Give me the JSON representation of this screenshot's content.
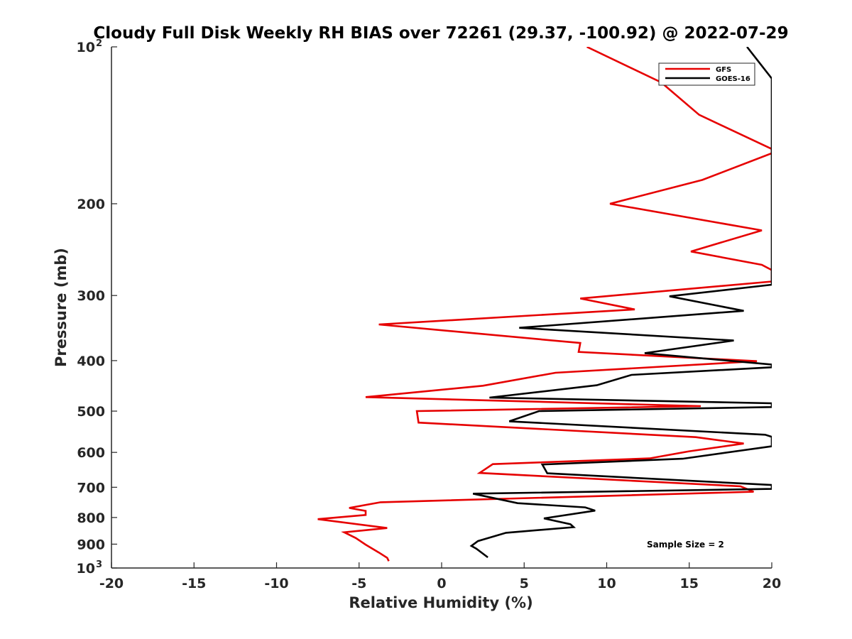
{
  "chart_data": {
    "type": "line",
    "title": "Cloudy Full Disk Weekly RH BIAS over 72261 (29.37, -100.92) @ 2022-07-29",
    "xlabel": "Relative Humidity (%)",
    "ylabel": "Pressure (mb)",
    "xlim": [
      -20,
      20
    ],
    "ylim": [
      100,
      1000
    ],
    "y_scale": "log",
    "y_reversed": true,
    "grid": false,
    "legend": "top-right",
    "x_ticks": [
      -20,
      -15,
      -10,
      -5,
      0,
      5,
      10,
      15,
      20
    ],
    "x_tick_labels": [
      "-20",
      "-15",
      "-10",
      "-5",
      "0",
      "5",
      "10",
      "15",
      "20"
    ],
    "y_ticks": [
      {
        "value": 100,
        "label": "10",
        "sup": "2"
      },
      {
        "value": 200,
        "label": "200",
        "sup": ""
      },
      {
        "value": 300,
        "label": "300",
        "sup": ""
      },
      {
        "value": 400,
        "label": "400",
        "sup": ""
      },
      {
        "value": 500,
        "label": "500",
        "sup": ""
      },
      {
        "value": 600,
        "label": "600",
        "sup": ""
      },
      {
        "value": 700,
        "label": "700",
        "sup": ""
      },
      {
        "value": 800,
        "label": "800",
        "sup": ""
      },
      {
        "value": 900,
        "label": "900",
        "sup": ""
      },
      {
        "value": 1000,
        "label": "10",
        "sup": "3"
      }
    ],
    "annotation": "Sample Size = 2",
    "series": [
      {
        "name": "GFS",
        "color": "#e60000",
        "points": [
          [
            8.8,
            100
          ],
          [
            13.3,
            117
          ],
          [
            15.6,
            135
          ],
          [
            20.0,
            157
          ],
          [
            20.0,
            160
          ],
          [
            15.8,
            180
          ],
          [
            10.2,
            200
          ],
          [
            19.4,
            225
          ],
          [
            15.1,
            247
          ],
          [
            19.4,
            262
          ],
          [
            20.0,
            268
          ],
          [
            20.0,
            282
          ],
          [
            8.4,
            304
          ],
          [
            11.7,
            319
          ],
          [
            -3.8,
            341
          ],
          [
            8.4,
            370
          ],
          [
            8.3,
            385
          ],
          [
            19.1,
            401
          ],
          [
            6.9,
            422
          ],
          [
            2.5,
            447
          ],
          [
            -4.6,
            470
          ],
          [
            15.7,
            489
          ],
          [
            -1.5,
            500
          ],
          [
            -1.4,
            526
          ],
          [
            15.4,
            561
          ],
          [
            18.3,
            577
          ],
          [
            15.0,
            597
          ],
          [
            12.6,
            616
          ],
          [
            3.1,
            632
          ],
          [
            2.3,
            657
          ],
          [
            18.1,
            697
          ],
          [
            18.9,
            714
          ],
          [
            -3.7,
            748
          ],
          [
            -5.6,
            767
          ],
          [
            -4.6,
            777
          ],
          [
            -4.6,
            791
          ],
          [
            -7.5,
            806
          ],
          [
            -3.3,
            838
          ],
          [
            -5.9,
            854
          ],
          [
            -5.2,
            876
          ],
          [
            -4.6,
            902
          ],
          [
            -3.8,
            934
          ],
          [
            -3.3,
            956
          ],
          [
            -3.2,
            970
          ]
        ]
      },
      {
        "name": "GOES-16",
        "color": "#000000",
        "points": [
          [
            18.5,
            100
          ],
          [
            20.0,
            115
          ],
          [
            20.0,
            286
          ],
          [
            13.8,
            301
          ],
          [
            18.3,
            321
          ],
          [
            4.7,
            346
          ],
          [
            17.7,
            366
          ],
          [
            12.3,
            387
          ],
          [
            20.0,
            407
          ],
          [
            20.0,
            412
          ],
          [
            11.5,
            426
          ],
          [
            9.4,
            446
          ],
          [
            2.9,
            471
          ],
          [
            20.0,
            483
          ],
          [
            20.0,
            491
          ],
          [
            5.9,
            500
          ],
          [
            4.1,
            523
          ],
          [
            19.6,
            555
          ],
          [
            20.0,
            560
          ],
          [
            20.0,
            584
          ],
          [
            14.6,
            617
          ],
          [
            6.1,
            633
          ],
          [
            6.4,
            658
          ],
          [
            20.0,
            693
          ],
          [
            20.0,
            705
          ],
          [
            1.9,
            720
          ],
          [
            4.6,
            751
          ],
          [
            8.7,
            765
          ],
          [
            9.3,
            776
          ],
          [
            6.2,
            803
          ],
          [
            7.8,
            824
          ],
          [
            8.0,
            835
          ],
          [
            3.9,
            856
          ],
          [
            2.2,
            888
          ],
          [
            1.8,
            907
          ],
          [
            2.1,
            918
          ],
          [
            2.8,
            954
          ]
        ]
      }
    ]
  }
}
